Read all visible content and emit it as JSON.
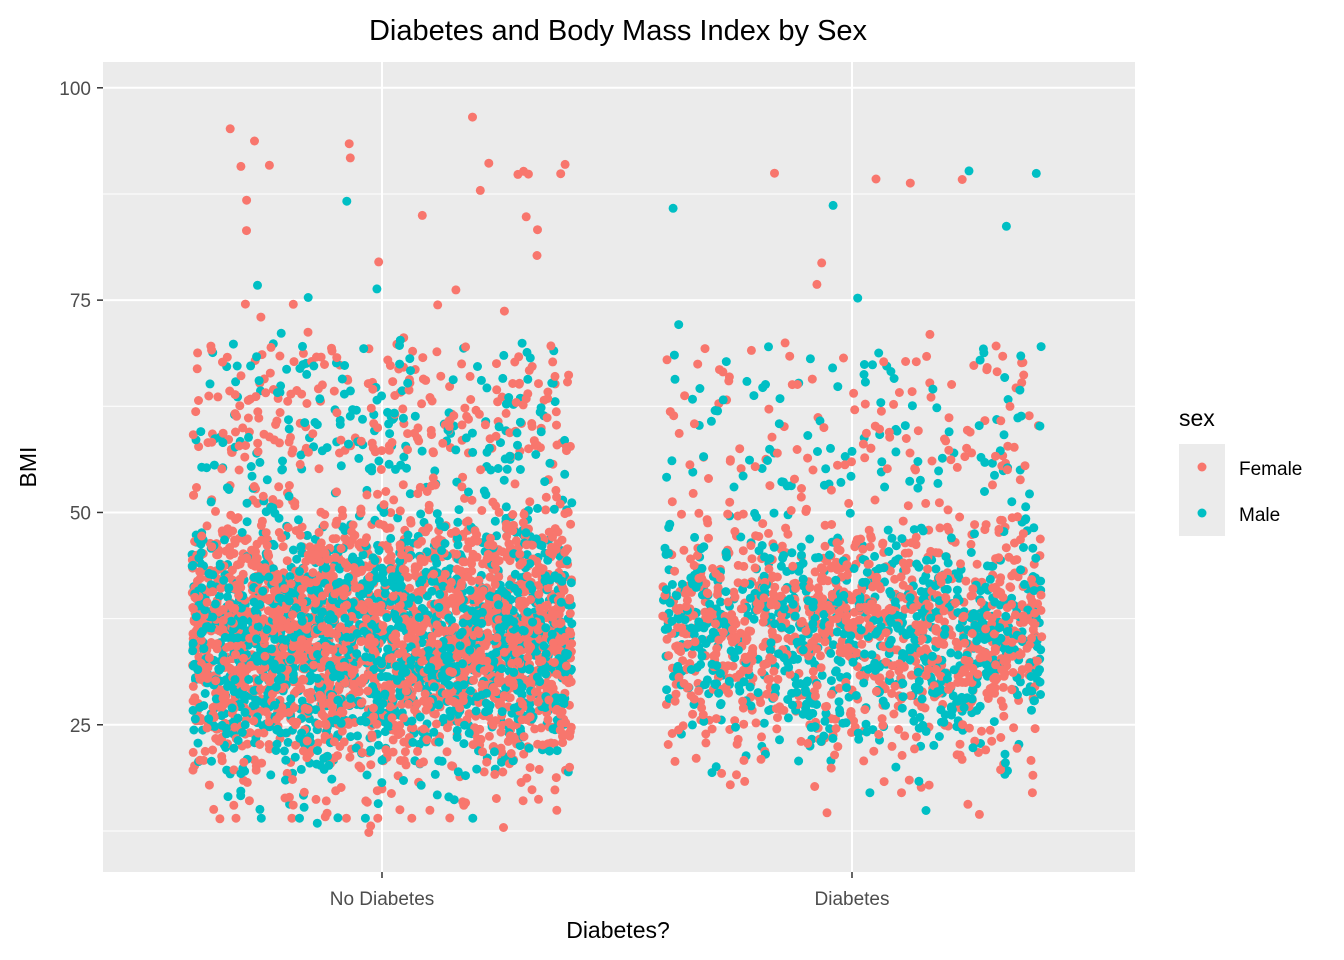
{
  "chart_data": {
    "type": "scatter",
    "title": "Diabetes and Body Mass Index by Sex",
    "xlabel": "Diabetes?",
    "ylabel": "BMI",
    "categories": [
      "No Diabetes",
      "Diabetes"
    ],
    "y_ticks": [
      25,
      50,
      75,
      100
    ],
    "y_tick_labels": [
      "25",
      "50",
      "75",
      "100"
    ],
    "ylim": [
      7.5,
      102
    ],
    "grid": true,
    "jitter": true,
    "legend": {
      "title": "sex",
      "placement": "right",
      "entries": [
        {
          "label": "Female",
          "color": "#F8766D"
        },
        {
          "label": "Male",
          "color": "#00BFC4"
        }
      ]
    },
    "colors": {
      "panel": "#EBEBEB",
      "grid": "#FFFFFF",
      "female": "#F8766D",
      "male": "#00BFC4"
    },
    "series": [
      {
        "name": "Female",
        "groups": [
          {
            "category": "No Diabetes",
            "bmi_range": [
              12,
              98
            ],
            "dense_range": [
              14,
              57
            ]
          },
          {
            "category": "Diabetes",
            "bmi_range": [
              14,
              98
            ],
            "dense_range": [
              17,
              55
            ]
          }
        ]
      },
      {
        "name": "Male",
        "groups": [
          {
            "category": "No Diabetes",
            "bmi_range": [
              12,
              87
            ],
            "dense_range": [
              14,
              55
            ]
          },
          {
            "category": "Diabetes",
            "bmi_range": [
              13,
              92
            ],
            "dense_range": [
              17,
              53
            ]
          }
        ]
      }
    ]
  }
}
